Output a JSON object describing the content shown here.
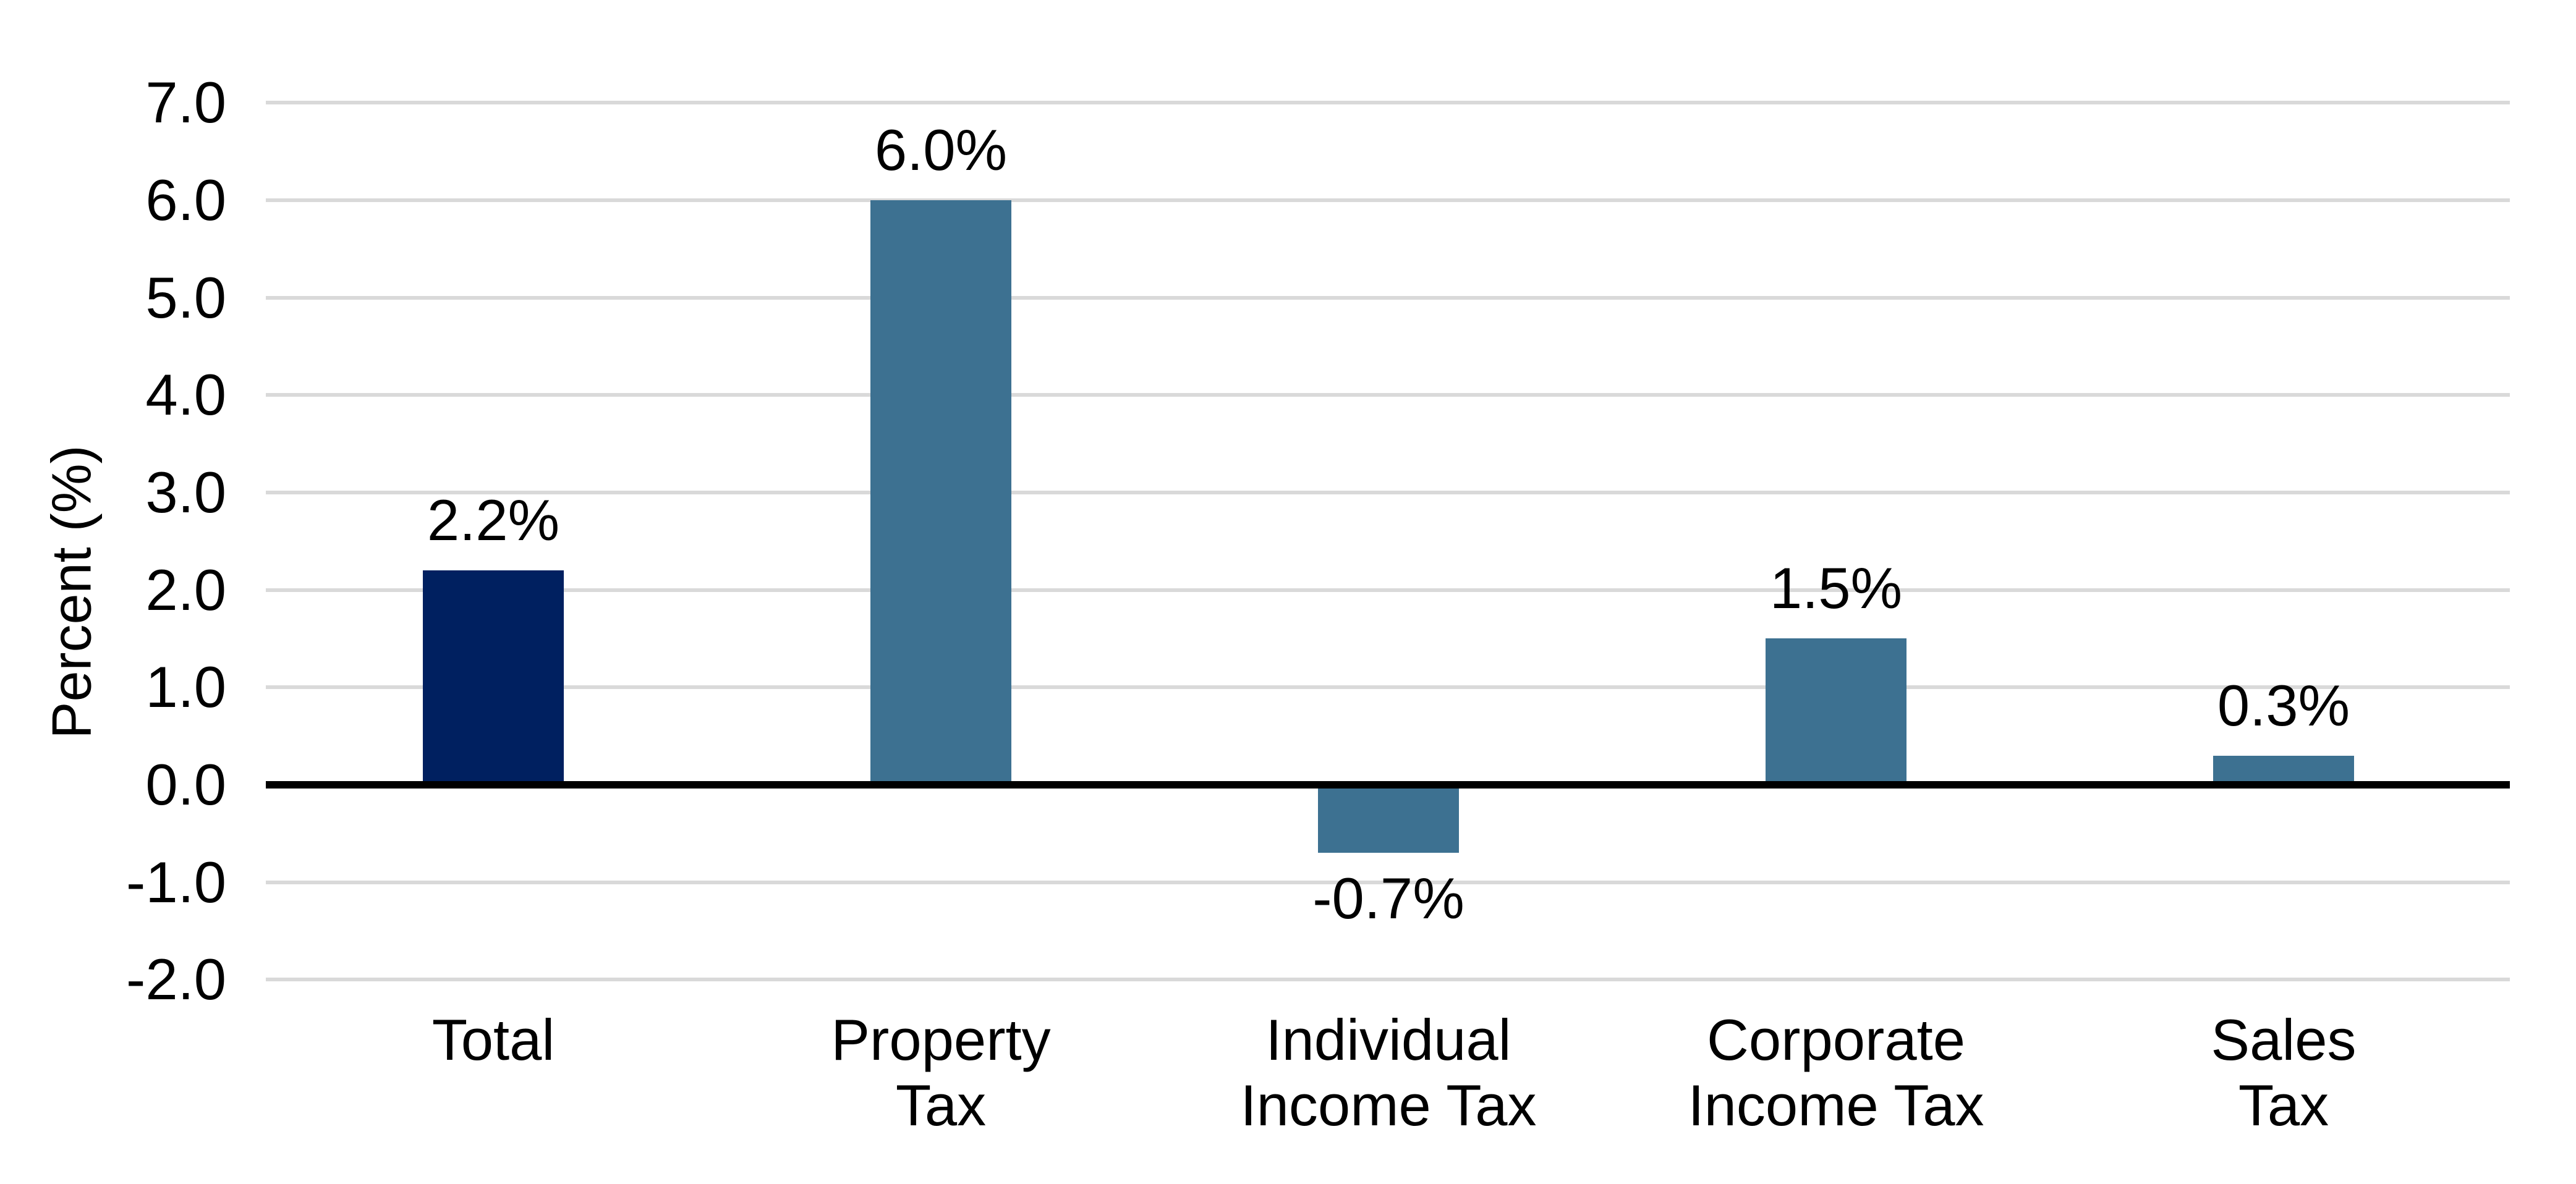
{
  "chart_data": {
    "type": "bar",
    "title": "",
    "xlabel": "",
    "ylabel": "Percent (%)",
    "categories": [
      "Total",
      "Property\nTax",
      "Individual\nIncome Tax",
      "Corporate\nIncome Tax",
      "Sales\nTax"
    ],
    "values": [
      2.2,
      6.0,
      -0.7,
      1.5,
      0.3
    ],
    "data_labels": [
      "2.2%",
      "6.0%",
      "-0.7%",
      "1.5%",
      "0.3%"
    ],
    "bar_colors": [
      "#002060",
      "#3D7191",
      "#3D7191",
      "#3D7191",
      "#3D7191"
    ],
    "ylim": [
      -2.0,
      7.0
    ],
    "ytick_step": 1.0,
    "ytick_labels": [
      "7.0",
      "6.0",
      "5.0",
      "4.0",
      "3.0",
      "2.0",
      "1.0",
      "0.0",
      "-1.0",
      "-2.0"
    ],
    "grid": true,
    "gridline_color": "#D9D9D9",
    "axis_line_color": "#000000",
    "text_color": "#000000",
    "background_color": "#FFFFFF",
    "legend_position": "none",
    "data_label_position": "outside-end"
  }
}
